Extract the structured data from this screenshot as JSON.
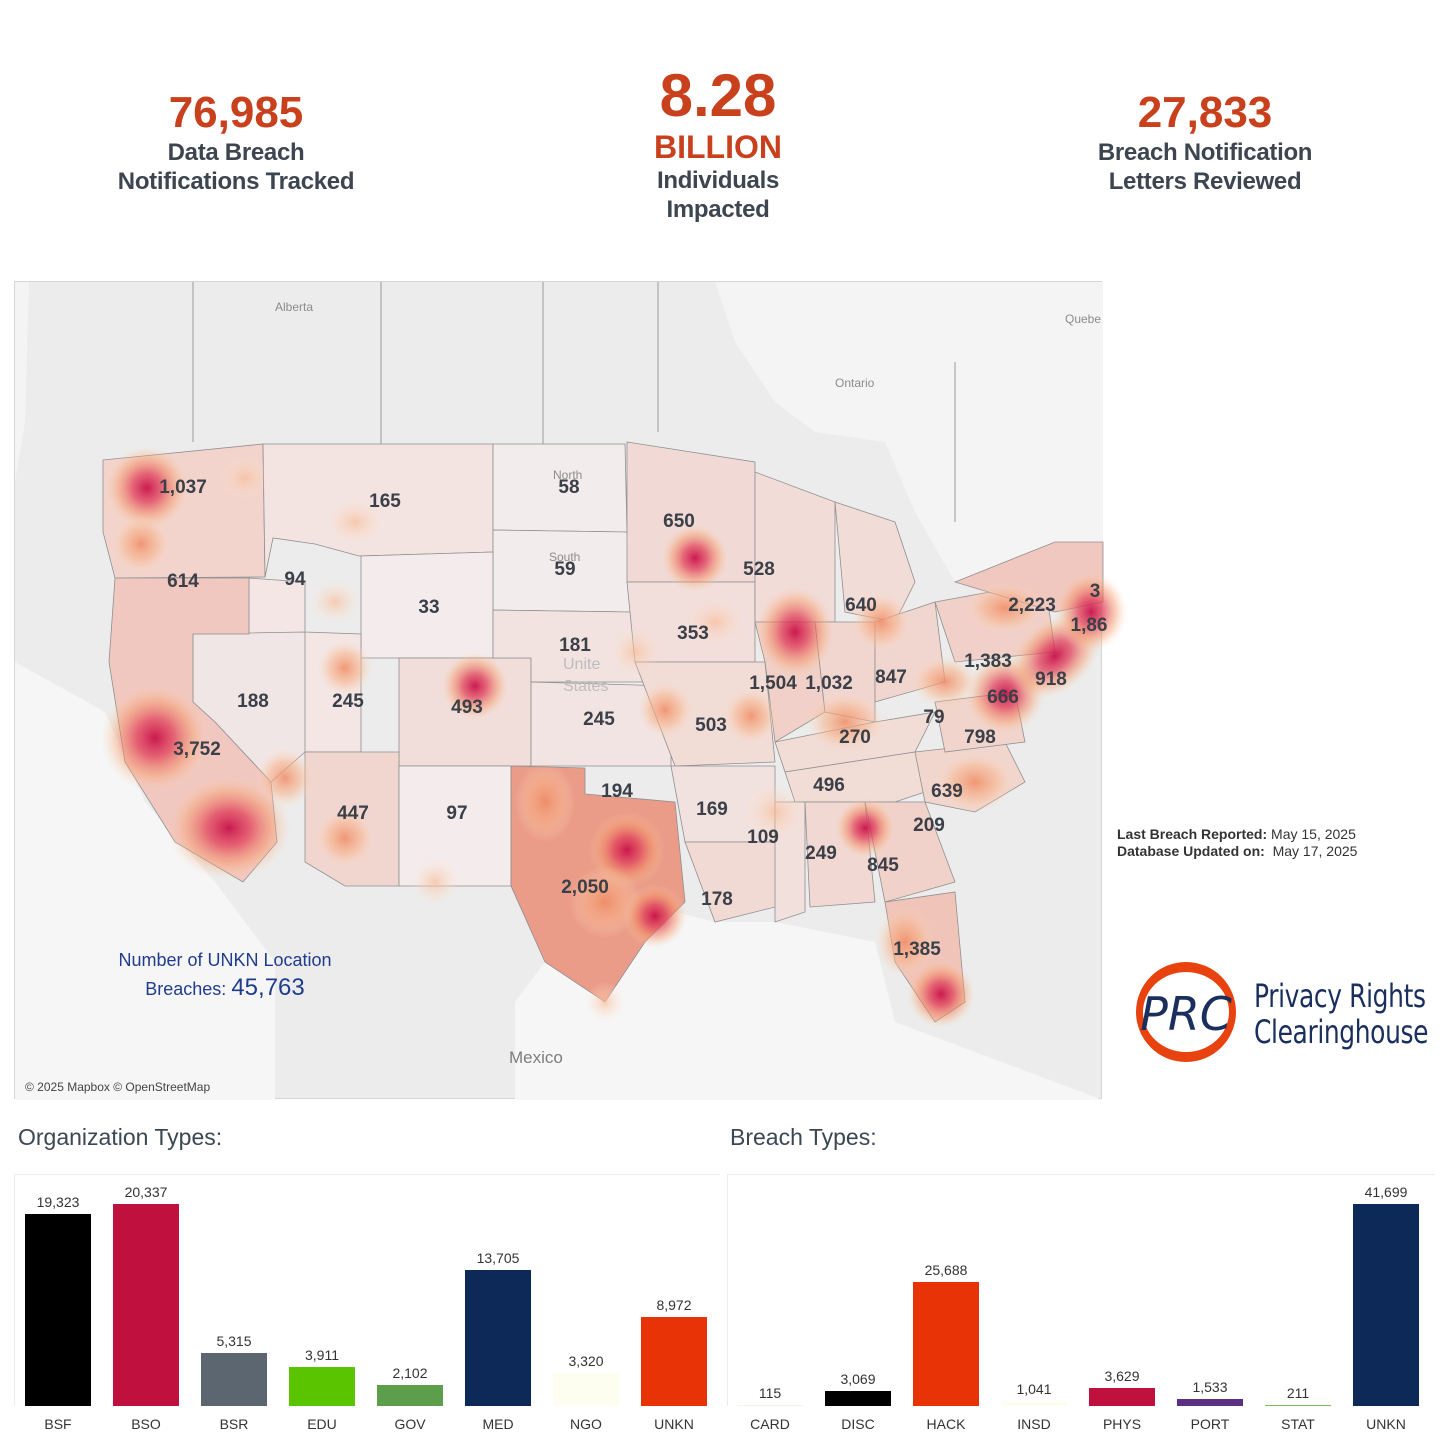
{
  "kpis": {
    "notifications": {
      "value": "76,985",
      "label1": "Data Breach",
      "label2": "Notifications Tracked"
    },
    "individuals": {
      "value": "8.28",
      "unit": "BILLION",
      "label1": "Individuals",
      "label2": "Impacted"
    },
    "letters": {
      "value": "27,833",
      "label1": "Breach Notification",
      "label2": "Letters Reviewed"
    }
  },
  "map": {
    "geo_labels": {
      "alberta": "Alberta",
      "ontario": "Ontario",
      "quebec": "Quebe",
      "mexico": "Mexico",
      "north": "North",
      "south": "South",
      "united": "Unite",
      "states": "States"
    },
    "state_values": [
      {
        "state": "WA",
        "value": "1,037"
      },
      {
        "state": "OR",
        "value": "614"
      },
      {
        "state": "CA",
        "value": "3,752"
      },
      {
        "state": "NV",
        "value": "188"
      },
      {
        "state": "ID",
        "value": "94"
      },
      {
        "state": "MT",
        "value": "165"
      },
      {
        "state": "WY",
        "value": "33"
      },
      {
        "state": "UT",
        "value": "245"
      },
      {
        "state": "AZ",
        "value": "447"
      },
      {
        "state": "CO",
        "value": "493"
      },
      {
        "state": "NM",
        "value": "97"
      },
      {
        "state": "ND",
        "value": "58"
      },
      {
        "state": "SD",
        "value": "59"
      },
      {
        "state": "NE",
        "value": "181"
      },
      {
        "state": "KS",
        "value": "245"
      },
      {
        "state": "OK",
        "value": "194"
      },
      {
        "state": "TX",
        "value": "2,050"
      },
      {
        "state": "MN",
        "value": "650"
      },
      {
        "state": "IA",
        "value": "353"
      },
      {
        "state": "MO",
        "value": "503"
      },
      {
        "state": "AR",
        "value": "169"
      },
      {
        "state": "LA",
        "value": "178"
      },
      {
        "state": "WI",
        "value": "528"
      },
      {
        "state": "IL",
        "value": "1,504"
      },
      {
        "state": "IN",
        "value": "1,032"
      },
      {
        "state": "MI",
        "value": "640"
      },
      {
        "state": "OH",
        "value": "847"
      },
      {
        "state": "KY",
        "value": "270"
      },
      {
        "state": "TN",
        "value": "496"
      },
      {
        "state": "MS",
        "value": "109"
      },
      {
        "state": "AL",
        "value": "249"
      },
      {
        "state": "GA",
        "value": "845"
      },
      {
        "state": "FL",
        "value": "1,385"
      },
      {
        "state": "SC",
        "value": "209"
      },
      {
        "state": "NC",
        "value": "639"
      },
      {
        "state": "VA",
        "value": "798"
      },
      {
        "state": "WV",
        "value": "79"
      },
      {
        "state": "PA",
        "value": "1,383"
      },
      {
        "state": "MD",
        "value": "666"
      },
      {
        "state": "NJ",
        "value": "918"
      },
      {
        "state": "NY",
        "value": "2,223"
      },
      {
        "state": "MA",
        "value": "1,86"
      },
      {
        "state": "CT",
        "value": "3"
      }
    ],
    "credit": "© 2025 Mapbox © OpenStreetMap",
    "unkn_label1": "Number of UNKN Location",
    "unkn_label2": "Breaches:",
    "unkn_value": "45,763"
  },
  "updates": {
    "last_label": "Last Breach Reported:",
    "last_value": "May 15, 2025",
    "db_label": "Database Updated on:",
    "db_value": "May 17, 2025"
  },
  "logo": {
    "mark": "PRC",
    "line1": "Privacy Rights",
    "line2": "Clearinghouse"
  },
  "chart_data": [
    {
      "type": "bar",
      "title": "Organization Types:",
      "categories": [
        "BSF",
        "BSO",
        "BSR",
        "EDU",
        "GOV",
        "MED",
        "NGO",
        "UNKN"
      ],
      "values": [
        19323,
        20337,
        5315,
        3911,
        2102,
        13705,
        3320,
        8972
      ],
      "value_labels": [
        "19,323",
        "20,337",
        "5,315",
        "3,911",
        "2,102",
        "13,705",
        "3,320",
        "8,972"
      ],
      "colors": [
        "#000000",
        "#c0103e",
        "#5c6670",
        "#5ac400",
        "#5c9e4b",
        "#0d2957",
        "#fdfdf0",
        "#e83306"
      ],
      "ylim": [
        0,
        20337
      ]
    },
    {
      "type": "bar",
      "title": "Breach Types:",
      "categories": [
        "CARD",
        "DISC",
        "HACK",
        "INSD",
        "PHYS",
        "PORT",
        "STAT",
        "UNKN"
      ],
      "values": [
        115,
        3069,
        25688,
        1041,
        3629,
        1533,
        211,
        41699
      ],
      "value_labels": [
        "115",
        "3,069",
        "25,688",
        "1,041",
        "3,629",
        "1,533",
        "211",
        "41,699"
      ],
      "colors": [
        "#f6f3e8",
        "#000000",
        "#e83306",
        "#fdfdf0",
        "#c0103e",
        "#5b3083",
        "#7dbb4f",
        "#0d2957"
      ],
      "ylim": [
        0,
        41699
      ]
    }
  ]
}
